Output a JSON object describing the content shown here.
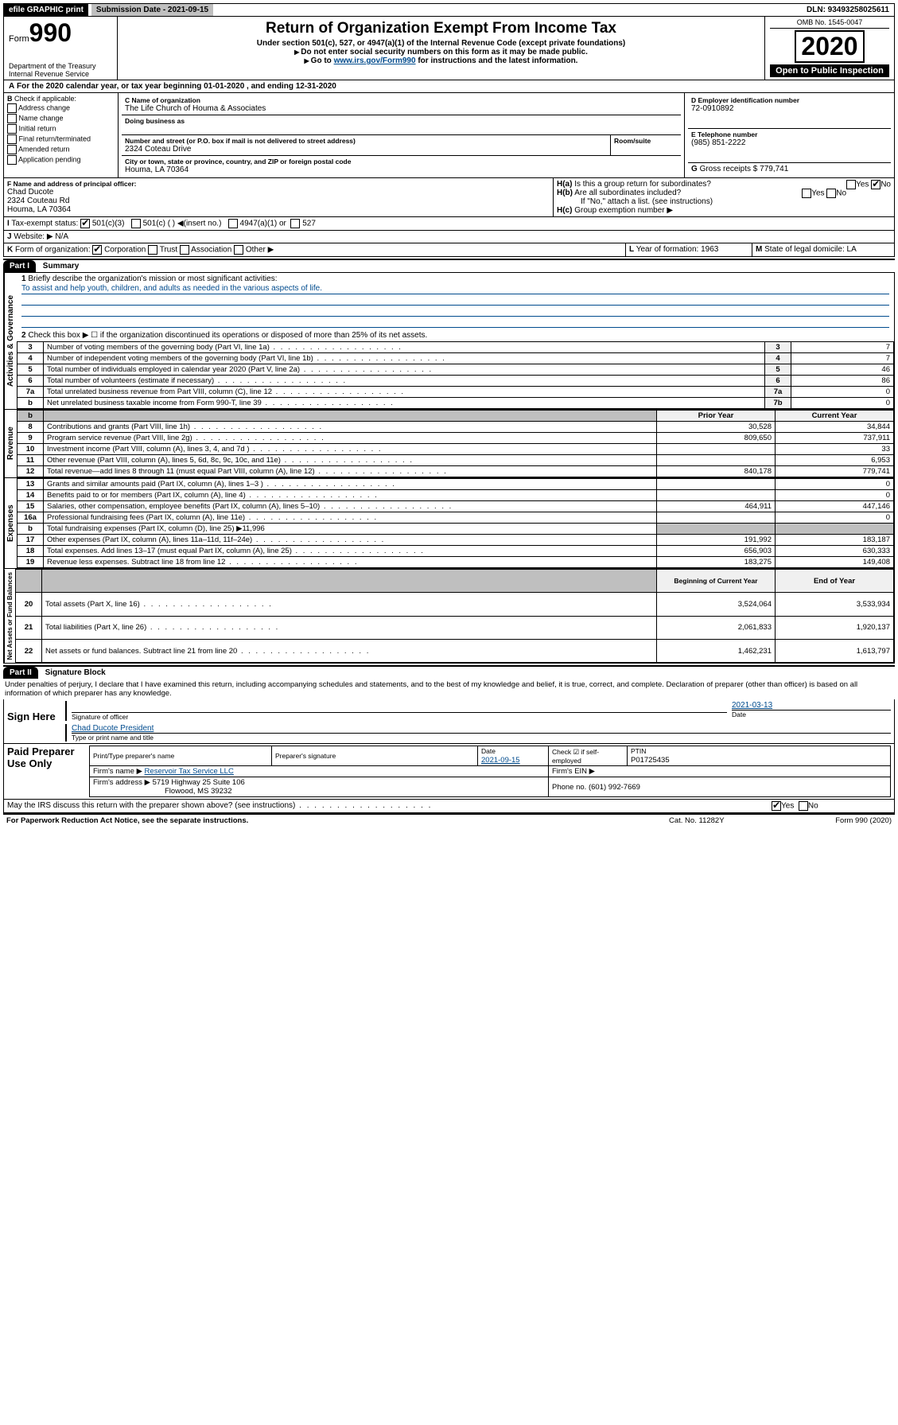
{
  "topbar": {
    "efile": "efile GRAPHIC print",
    "subdate_lbl": "Submission Date - 2021-09-15",
    "dln": "DLN: 93493258025611"
  },
  "hdr": {
    "form_lbl": "Form",
    "form_no": "990",
    "dept": "Department of the Treasury\nInternal Revenue Service",
    "title": "Return of Organization Exempt From Income Tax",
    "sub1": "Under section 501(c), 527, or 4947(a)(1) of the Internal Revenue Code (except private foundations)",
    "sub2": "Do not enter social security numbers on this form as it may be made public.",
    "sub3a": "Go to ",
    "sub3link": "www.irs.gov/Form990",
    "sub3b": " for instructions and the latest information.",
    "omb": "OMB No. 1545-0047",
    "year": "2020",
    "open": "Open to Public Inspection"
  },
  "A": {
    "txt": "For the 2020 calendar year, or tax year beginning 01-01-2020    , and ending 12-31-2020"
  },
  "B": {
    "hdr": "Check if applicable:",
    "items": [
      "Address change",
      "Name change",
      "Initial return",
      "Final return/terminated",
      "Amended return",
      "Application pending"
    ]
  },
  "C": {
    "name_lbl": "Name of organization",
    "name": "The Life Church of Houma & Associates",
    "dba_lbl": "Doing business as",
    "addr_lbl": "Number and street (or P.O. box if mail is not delivered to street address)",
    "room_lbl": "Room/suite",
    "addr": "2324 Coteau Drive",
    "city_lbl": "City or town, state or province, country, and ZIP or foreign postal code",
    "city": "Houma, LA  70364"
  },
  "D": {
    "lbl": "Employer identification number",
    "val": "72-0910892"
  },
  "E": {
    "lbl": "Telephone number",
    "val": "(985) 851-2222"
  },
  "G": {
    "lbl": "Gross receipts $",
    "val": "779,741"
  },
  "F": {
    "lbl": "Name and address of principal officer:",
    "name": "Chad Ducote",
    "l1": "2324 Couteau Rd",
    "l2": "Houma, LA  70364"
  },
  "H": {
    "a": "Is this a group return for subordinates?",
    "b": "Are all subordinates included?",
    "bnote": "If \"No,\" attach a list. (see instructions)",
    "c": "Group exemption number ▶",
    "yes": "Yes",
    "no": "No"
  },
  "I": {
    "lbl": "Tax-exempt status:",
    "o1": "501(c)(3)",
    "o2": "501(c) (  ) ◀(insert no.)",
    "o3": "4947(a)(1) or",
    "o4": "527"
  },
  "J": {
    "lbl": "Website: ▶",
    "val": "N/A"
  },
  "K": {
    "lbl": "Form of organization:",
    "o1": "Corporation",
    "o2": "Trust",
    "o3": "Association",
    "o4": "Other ▶"
  },
  "L": {
    "lbl": "Year of formation:",
    "val": "1963"
  },
  "M": {
    "lbl": "State of legal domicile:",
    "val": "LA"
  },
  "part1": {
    "tab": "Part I",
    "title": "Summary"
  },
  "gov": {
    "l1": "Briefly describe the organization's mission or most significant activities:",
    "l1v": "To assist and help youth, children, and adults as needed in the various aspects of life.",
    "l2": "Check this box ▶ ☐  if the organization discontinued its operations or disposed of more than 25% of its net assets.",
    "rows": [
      {
        "n": "3",
        "t": "Number of voting members of the governing body (Part VI, line 1a)",
        "c": "3",
        "v": "7"
      },
      {
        "n": "4",
        "t": "Number of independent voting members of the governing body (Part VI, line 1b)",
        "c": "4",
        "v": "7"
      },
      {
        "n": "5",
        "t": "Total number of individuals employed in calendar year 2020 (Part V, line 2a)",
        "c": "5",
        "v": "46"
      },
      {
        "n": "6",
        "t": "Total number of volunteers (estimate if necessary)",
        "c": "6",
        "v": "86"
      },
      {
        "n": "7a",
        "t": "Total unrelated business revenue from Part VIII, column (C), line 12",
        "c": "7a",
        "v": "0"
      },
      {
        "n": "b",
        "t": "Net unrelated business taxable income from Form 990-T, line 39",
        "c": "7b",
        "v": "0"
      }
    ]
  },
  "rev": {
    "hdr": {
      "py": "Prior Year",
      "cy": "Current Year"
    },
    "rows": [
      {
        "n": "8",
        "t": "Contributions and grants (Part VIII, line 1h)",
        "py": "30,528",
        "cy": "34,844"
      },
      {
        "n": "9",
        "t": "Program service revenue (Part VIII, line 2g)",
        "py": "809,650",
        "cy": "737,911"
      },
      {
        "n": "10",
        "t": "Investment income (Part VIII, column (A), lines 3, 4, and 7d )",
        "py": "",
        "cy": "33"
      },
      {
        "n": "11",
        "t": "Other revenue (Part VIII, column (A), lines 5, 6d, 8c, 9c, 10c, and 11e)",
        "py": "",
        "cy": "6,953"
      },
      {
        "n": "12",
        "t": "Total revenue—add lines 8 through 11 (must equal Part VIII, column (A), line 12)",
        "py": "840,178",
        "cy": "779,741"
      }
    ]
  },
  "exp": {
    "rows": [
      {
        "n": "13",
        "t": "Grants and similar amounts paid (Part IX, column (A), lines 1–3 )",
        "py": "",
        "cy": "0"
      },
      {
        "n": "14",
        "t": "Benefits paid to or for members (Part IX, column (A), line 4)",
        "py": "",
        "cy": "0"
      },
      {
        "n": "15",
        "t": "Salaries, other compensation, employee benefits (Part IX, column (A), lines 5–10)",
        "py": "464,911",
        "cy": "447,146"
      },
      {
        "n": "16a",
        "t": "Professional fundraising fees (Part IX, column (A), line 11e)",
        "py": "",
        "cy": "0"
      },
      {
        "n": "b",
        "t": "Total fundraising expenses (Part IX, column (D), line 25) ▶11,996",
        "py": "—",
        "cy": "—"
      },
      {
        "n": "17",
        "t": "Other expenses (Part IX, column (A), lines 11a–11d, 11f–24e)",
        "py": "191,992",
        "cy": "183,187"
      },
      {
        "n": "18",
        "t": "Total expenses. Add lines 13–17 (must equal Part IX, column (A), line 25)",
        "py": "656,903",
        "cy": "630,333"
      },
      {
        "n": "19",
        "t": "Revenue less expenses. Subtract line 18 from line 12",
        "py": "183,275",
        "cy": "149,408"
      }
    ]
  },
  "net": {
    "hdr": {
      "b": "Beginning of Current Year",
      "e": "End of Year"
    },
    "rows": [
      {
        "n": "20",
        "t": "Total assets (Part X, line 16)",
        "b": "3,524,064",
        "e": "3,533,934"
      },
      {
        "n": "21",
        "t": "Total liabilities (Part X, line 26)",
        "b": "2,061,833",
        "e": "1,920,137"
      },
      {
        "n": "22",
        "t": "Net assets or fund balances. Subtract line 21 from line 20",
        "b": "1,462,231",
        "e": "1,613,797"
      }
    ]
  },
  "part2": {
    "tab": "Part II",
    "title": "Signature Block",
    "decl": "Under penalties of perjury, I declare that I have examined this return, including accompanying schedules and statements, and to the best of my knowledge and belief, it is true, correct, and complete. Declaration of preparer (other than officer) is based on all information of which preparer has any knowledge."
  },
  "sign": {
    "here": "Sign Here",
    "sigoff": "Signature of officer",
    "date_lbl": "Date",
    "date": "2021-03-13",
    "name": "Chad Ducote  President",
    "name_lbl": "Type or print name and title"
  },
  "paid": {
    "hdr": "Paid Preparer Use Only",
    "c1": "Print/Type preparer's name",
    "c2": "Preparer's signature",
    "c3": "Date",
    "c3v": "2021-09-15",
    "c4": "Check ☑ if self-employed",
    "c5": "PTIN",
    "c5v": "P01725435",
    "firm_lbl": "Firm's name   ▶",
    "firm": "Reservoir Tax Service LLC",
    "ein_lbl": "Firm's EIN ▶",
    "addr_lbl": "Firm's address ▶",
    "addr1": "5719 Highway 25 Suite 106",
    "addr2": "Flowood, MS  39232",
    "phone_lbl": "Phone no.",
    "phone": "(601) 992-7669"
  },
  "discuss": {
    "q": "May the IRS discuss this return with the preparer shown above? (see instructions)",
    "yes": "Yes",
    "no": "No"
  },
  "footer": {
    "pra": "For Paperwork Reduction Act Notice, see the separate instructions.",
    "cat": "Cat. No. 11282Y",
    "form": "Form 990 (2020)"
  },
  "labels": {
    "gov": "Activities & Governance",
    "rev": "Revenue",
    "exp": "Expenses",
    "net": "Net Assets or Fund Balances"
  }
}
